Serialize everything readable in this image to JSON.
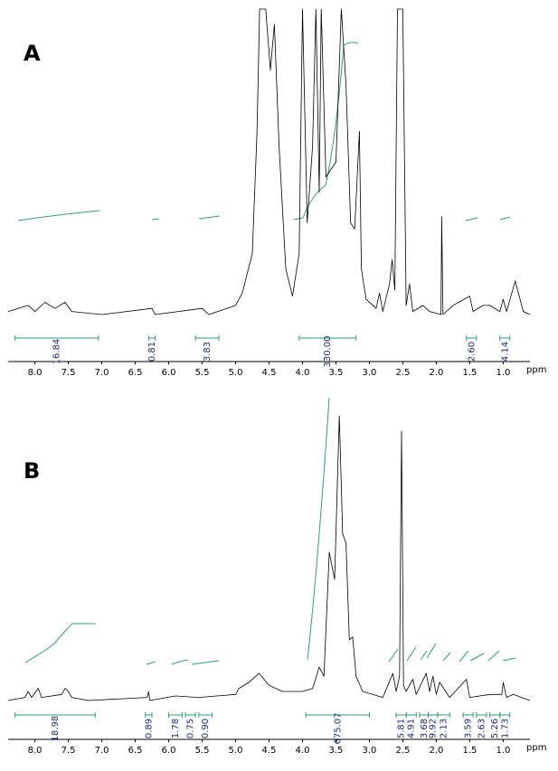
{
  "chart_data": [
    {
      "type": "line",
      "title": "A",
      "x_label": "ppm",
      "color": "#000000",
      "integral_color": "#2e9e7e",
      "label_color": "#1f2a7a",
      "xlim": [
        8.4,
        0.6
      ],
      "ylim": [
        0,
        100
      ],
      "xticks": [
        {
          "value": 8.0,
          "label": "8.0"
        },
        {
          "value": 7.5,
          "label": "7.5"
        },
        {
          "value": 7.0,
          "label": "7.0"
        },
        {
          "value": 6.5,
          "label": "6.5"
        },
        {
          "value": 6.0,
          "label": "6.0"
        },
        {
          "value": 5.5,
          "label": "5.5"
        },
        {
          "value": 5.0,
          "label": "5.0"
        },
        {
          "value": 4.5,
          "label": "4.5"
        },
        {
          "value": 4.0,
          "label": "4.0"
        },
        {
          "value": 3.5,
          "label": "3.5"
        },
        {
          "value": 3.0,
          "label": "3.0"
        },
        {
          "value": 2.5,
          "label": "2.5"
        },
        {
          "value": 2.0,
          "label": "2.0"
        },
        {
          "value": 1.5,
          "label": "1.5"
        },
        {
          "value": 1.0,
          "label": "1.0"
        }
      ],
      "x": [
        8.4,
        8.1,
        8.0,
        7.85,
        7.7,
        7.55,
        7.45,
        7.0,
        6.25,
        6.2,
        5.5,
        5.4,
        5.0,
        4.9,
        4.75,
        4.68,
        4.64,
        4.55,
        4.48,
        4.42,
        4.35,
        4.25,
        4.15,
        4.05,
        4.0,
        3.93,
        3.85,
        3.8,
        3.75,
        3.72,
        3.65,
        3.5,
        3.42,
        3.35,
        3.28,
        3.22,
        3.15,
        3.12,
        3.05,
        2.9,
        2.85,
        2.8,
        2.7,
        2.66,
        2.62,
        2.58,
        2.5,
        2.45,
        2.4,
        2.35,
        2.2,
        2.1,
        1.93,
        1.92,
        1.9,
        1.75,
        1.5,
        1.45,
        1.3,
        1.2,
        1.05,
        1.0,
        0.95,
        0.82,
        0.7,
        0.6
      ],
      "values": [
        1,
        3,
        1,
        4,
        2,
        4,
        1,
        0,
        2,
        0,
        2,
        0,
        3,
        7,
        20,
        60,
        100,
        100,
        80,
        95,
        55,
        15,
        6,
        20,
        100,
        30,
        55,
        100,
        40,
        100,
        45,
        50,
        100,
        75,
        30,
        28,
        60,
        15,
        5,
        2,
        7,
        1,
        10,
        18,
        8,
        100,
        100,
        3,
        10,
        1,
        3,
        1,
        0,
        32,
        0,
        3,
        6,
        1,
        3,
        3,
        1,
        5,
        1,
        11,
        1,
        0
      ],
      "integrals": {
        "ranges": [
          [
            8.3,
            7.05
          ],
          [
            6.3,
            6.2
          ],
          [
            5.6,
            5.25
          ],
          [
            4.05,
            3.2
          ],
          [
            1.55,
            1.4
          ],
          [
            1.05,
            0.9
          ]
        ],
        "values": [
          16.84,
          0.81,
          3.83,
          330,
          2.6,
          4.14
        ],
        "value_labels": [
          "16.84",
          "0.81",
          "3.83",
          "330.00",
          "2.60",
          "4.14"
        ]
      }
    },
    {
      "type": "line",
      "title": "B",
      "x_label": "ppm",
      "color": "#000000",
      "integral_color": "#2e9e7e",
      "label_color": "#1f2a7a",
      "xlim": [
        8.4,
        0.6
      ],
      "ylim": [
        0,
        100
      ],
      "xticks": [
        {
          "value": 8.0,
          "label": "8.0"
        },
        {
          "value": 7.5,
          "label": "7.5"
        },
        {
          "value": 7.0,
          "label": "7.0"
        },
        {
          "value": 6.5,
          "label": "6.5"
        },
        {
          "value": 6.0,
          "label": "6.0"
        },
        {
          "value": 5.5,
          "label": "5.5"
        },
        {
          "value": 5.0,
          "label": "5.0"
        },
        {
          "value": 4.5,
          "label": "4.5"
        },
        {
          "value": 4.0,
          "label": "4.0"
        },
        {
          "value": 3.5,
          "label": "3.5"
        },
        {
          "value": 3.0,
          "label": "3.0"
        },
        {
          "value": 2.5,
          "label": "2.5"
        },
        {
          "value": 2.0,
          "label": "2.0"
        },
        {
          "value": 1.5,
          "label": "1.5"
        },
        {
          "value": 1.0,
          "label": "1.0"
        }
      ],
      "x": [
        8.4,
        8.15,
        8.1,
        8.05,
        7.95,
        7.9,
        7.6,
        7.55,
        7.5,
        7.45,
        7.2,
        6.32,
        6.3,
        6.28,
        5.9,
        5.55,
        5.0,
        4.95,
        4.8,
        4.65,
        4.5,
        4.3,
        4.0,
        3.85,
        3.75,
        3.68,
        3.6,
        3.52,
        3.45,
        3.4,
        3.35,
        3.3,
        3.25,
        3.2,
        3.1,
        2.8,
        2.65,
        2.6,
        2.55,
        2.52,
        2.49,
        2.45,
        2.35,
        2.3,
        2.15,
        2.1,
        2.05,
        2.0,
        1.95,
        1.8,
        1.55,
        1.5,
        1.2,
        1.02,
        1.0,
        0.95,
        0.85,
        0.6
      ],
      "values": [
        0,
        1,
        3,
        1,
        4,
        1,
        2,
        4,
        3,
        1,
        0,
        1,
        3,
        0,
        1.5,
        1,
        2,
        4,
        6,
        9,
        5,
        3,
        3,
        4,
        11,
        8,
        49,
        40,
        94,
        55,
        52,
        20,
        21,
        8,
        3,
        1,
        9,
        3,
        8,
        89,
        5,
        3,
        7,
        2,
        9,
        3,
        8,
        2,
        6,
        1,
        7,
        1,
        2,
        2,
        6,
        1,
        2,
        0
      ],
      "integrals": {
        "ranges": [
          [
            8.3,
            7.1
          ],
          [
            6.35,
            6.25
          ],
          [
            6.0,
            5.8
          ],
          [
            5.75,
            5.6
          ],
          [
            5.55,
            5.35
          ],
          [
            3.95,
            3.0
          ],
          [
            2.6,
            2.45
          ],
          [
            2.45,
            2.3
          ],
          [
            2.25,
            2.12
          ],
          [
            2.12,
            1.98
          ],
          [
            1.98,
            1.8
          ],
          [
            1.6,
            1.45
          ],
          [
            1.4,
            1.25
          ],
          [
            1.2,
            1.05
          ],
          [
            1.05,
            0.9
          ]
        ],
        "values": [
          18.98,
          0.89,
          1.78,
          0.75,
          0.9,
          675.07,
          5.81,
          4.91,
          3.68,
          9.92,
          2.13,
          3.59,
          2.63,
          5.26,
          1.73
        ],
        "value_labels": [
          "18.98",
          "0.89",
          "1.78",
          "0.75",
          "0.90",
          "675.07",
          "5.81",
          "4.91",
          "3.68",
          "9.92",
          "2.13",
          "3.59",
          "2.63",
          "5.26",
          "1.73"
        ]
      }
    }
  ]
}
